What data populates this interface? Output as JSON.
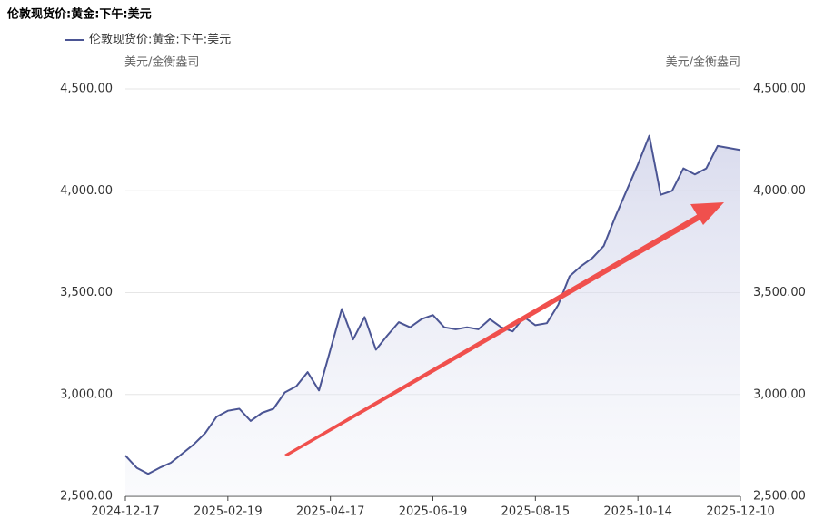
{
  "chart_data": {
    "type": "line",
    "title": "伦敦现货价:黄金:下午:美元",
    "y_label": "美元/金衡盎司",
    "y2_label": "美元/金衡盎司",
    "categories": [
      "2024-12-17",
      null,
      null,
      null,
      null,
      null,
      null,
      null,
      null,
      "2025-02-19",
      null,
      null,
      null,
      null,
      null,
      null,
      null,
      null,
      "2025-04-17",
      null,
      null,
      null,
      null,
      null,
      null,
      null,
      null,
      "2025-06-19",
      null,
      null,
      null,
      null,
      null,
      null,
      null,
      null,
      "2025-08-15",
      null,
      null,
      null,
      null,
      null,
      null,
      null,
      null,
      "2025-10-14",
      null,
      null,
      null,
      null,
      null,
      null,
      null,
      null,
      "2025-12-10"
    ],
    "series": [
      {
        "name": "伦敦现货价:黄金:下午:美元",
        "color": "#4b5594",
        "values": [
          2700,
          2640,
          2610,
          2640,
          2665,
          2710,
          2755,
          2810,
          2890,
          2920,
          2930,
          2870,
          2910,
          2930,
          3010,
          3040,
          3110,
          3020,
          3220,
          3420,
          3270,
          3380,
          3220,
          3290,
          3355,
          3330,
          3370,
          3390,
          3330,
          3320,
          3330,
          3320,
          3370,
          3330,
          3310,
          3380,
          3340,
          3350,
          3440,
          3580,
          3630,
          3670,
          3730,
          3870,
          4000,
          4130,
          4270,
          3980,
          4000,
          4110,
          4080,
          4110,
          4220,
          4210,
          4200
        ]
      }
    ],
    "ylim": [
      2500,
      4500
    ],
    "yticks": [
      {
        "value": 2500,
        "label": "2,500.00"
      },
      {
        "value": 3000,
        "label": "3,000.00"
      },
      {
        "value": 3500,
        "label": "3,500.00"
      },
      {
        "value": 4000,
        "label": "4,000.00"
      },
      {
        "value": 4500,
        "label": "4,500.00"
      }
    ],
    "y2lim": [
      2500,
      4500
    ],
    "y2ticks": [
      {
        "value": 2500,
        "label": "2,500.00"
      },
      {
        "value": 3000,
        "label": "3,000.00"
      },
      {
        "value": 3500,
        "label": "3,500.00"
      },
      {
        "value": 4000,
        "label": "4,000.00"
      },
      {
        "value": 4500,
        "label": "4,500.00"
      }
    ],
    "grid": true
  }
}
